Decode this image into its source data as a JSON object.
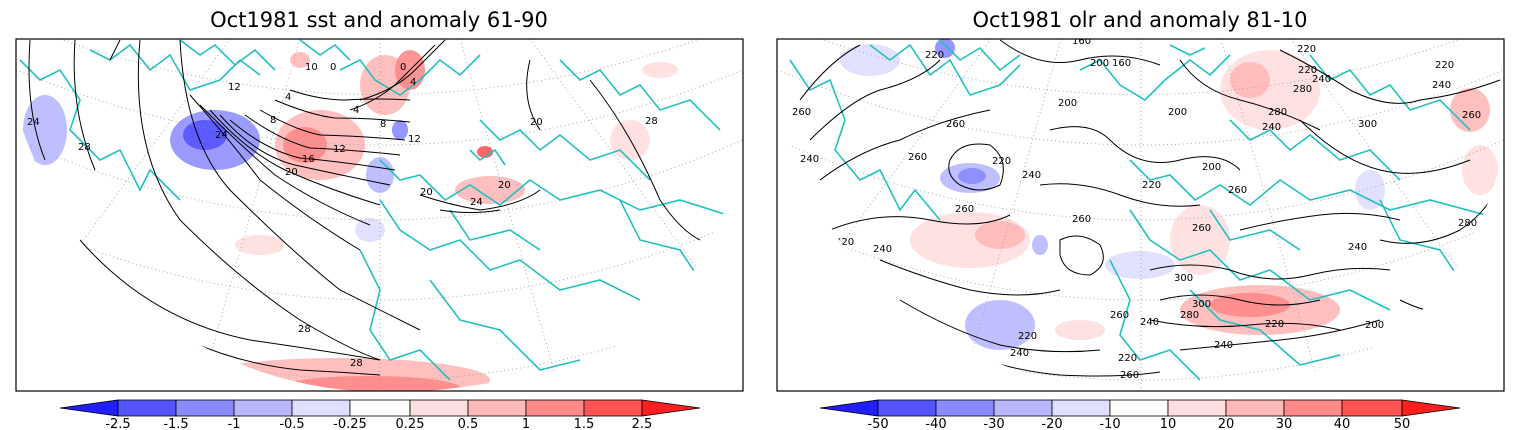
{
  "panels": [
    {
      "id": "sst",
      "title": "Oct1981 sst and anomaly 61-90",
      "colorbar": {
        "colors": [
          "#1f1fff",
          "#5454ff",
          "#8a8aff",
          "#b8b8ff",
          "#dedeff",
          "#ffffff",
          "#ffdede",
          "#ffb8b8",
          "#ff8a8a",
          "#ff5454",
          "#ff1f1f"
        ],
        "labels": [
          "-2.5",
          "-1.5",
          "-1",
          "-0.5",
          "-0.25",
          "0.25",
          "0.5",
          "1",
          "1.5",
          "2.5"
        ]
      },
      "contour_labels": [
        "24",
        "28",
        "12",
        "10",
        "0",
        "0",
        "4",
        "4",
        "4",
        "8",
        "8",
        "12",
        "12",
        "16",
        "20",
        "24",
        "20",
        "24",
        "28",
        "28",
        "28",
        "20",
        "20"
      ]
    },
    {
      "id": "olr",
      "title": "Oct1981 olr and anomaly 81-10",
      "colorbar": {
        "colors": [
          "#1f1fff",
          "#5454ff",
          "#8a8aff",
          "#b8b8ff",
          "#dedeff",
          "#ffffff",
          "#ffdede",
          "#ffb8b8",
          "#ff8a8a",
          "#ff5454",
          "#ff1f1f"
        ],
        "labels": [
          "-50",
          "-40",
          "-30",
          "-20",
          "-10",
          "10",
          "20",
          "30",
          "40",
          "50"
        ]
      },
      "contour_labels": [
        "220",
        "160",
        "200",
        "160",
        "220",
        "240",
        "280",
        "220",
        "260",
        "200",
        "240",
        "220",
        "260",
        "280",
        "300",
        "260",
        "200",
        "240",
        "220",
        "240",
        "260",
        "200",
        "220",
        "240",
        "260",
        "260",
        "280",
        "220",
        "240",
        "260",
        "260",
        "240",
        "300",
        "300",
        "280",
        "240",
        "260",
        "220",
        "220",
        "240",
        "240",
        "200",
        "220",
        "260"
      ]
    }
  ],
  "colors": {
    "coastline": "#22c0c0",
    "contour": "#000000",
    "frame": "#000000",
    "grid": "#999999"
  }
}
